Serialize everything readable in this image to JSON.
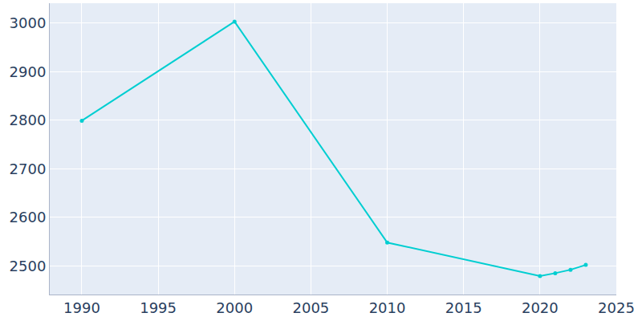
{
  "chart_data": {
    "type": "line",
    "x": [
      1990,
      2000,
      2010,
      2020,
      2021,
      2022,
      2023
    ],
    "values": [
      2799,
      3003,
      2548,
      2479,
      2485,
      2492,
      2502
    ],
    "color": "#00ced1",
    "marker": "circle",
    "xlim": [
      1987.9,
      2025
    ],
    "xticks": [
      1990,
      1995,
      2000,
      2005,
      2010,
      2015,
      2020,
      2025
    ],
    "ylim": [
      2441,
      3041
    ],
    "yticks": [
      2500,
      2600,
      2700,
      2800,
      2900,
      3000
    ],
    "grid": true
  }
}
